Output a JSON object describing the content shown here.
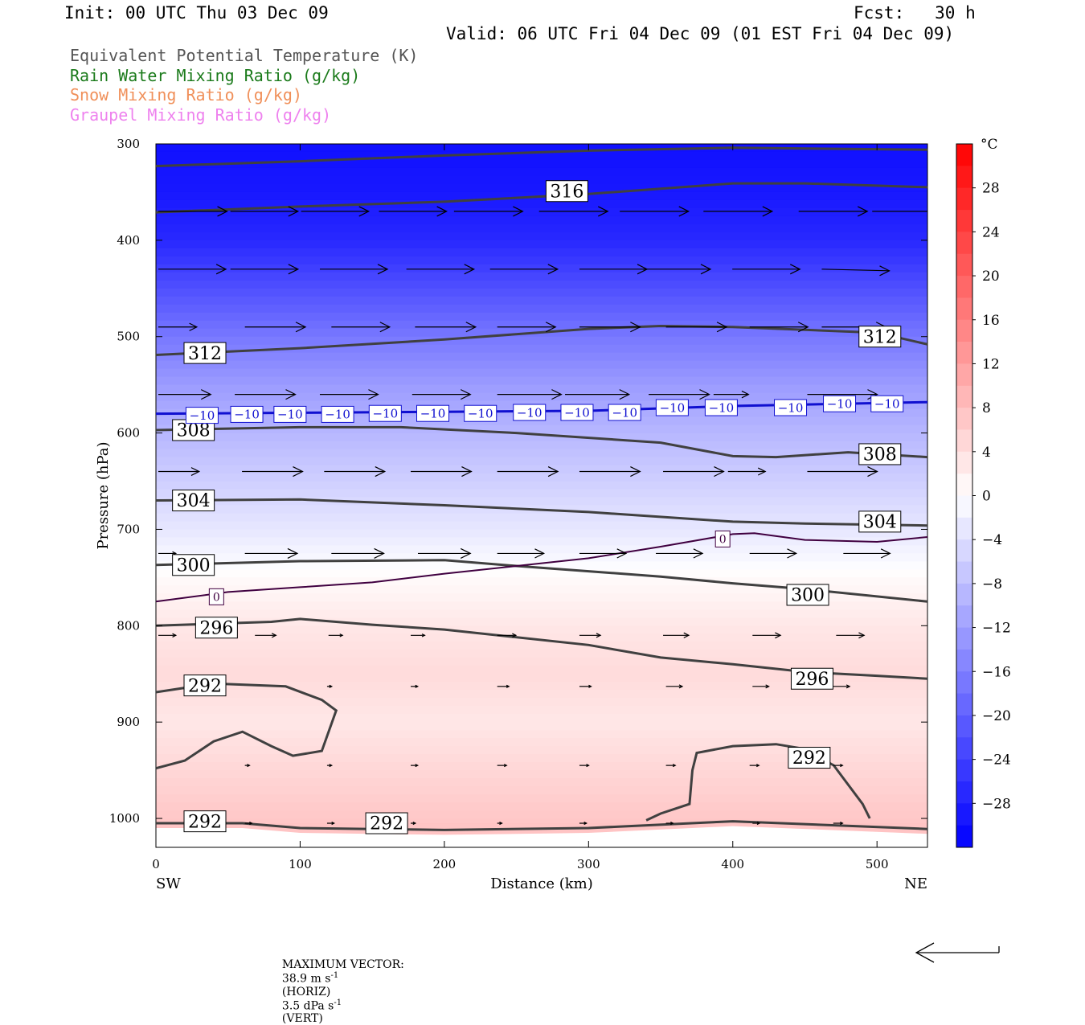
{
  "header": {
    "init": "Init: 00 UTC Thu 03 Dec 09",
    "fcst": "Fcst:   30 h",
    "valid": "Valid: 06 UTC Fri 04 Dec 09 (01 EST Fri 04 Dec 09)"
  },
  "legend": [
    {
      "label": "Equivalent Potential Temperature (K)",
      "color": "#555555"
    },
    {
      "label": "Rain Water Mixing Ratio (g/kg)",
      "color": "#1a7a1a"
    },
    {
      "label": "Snow Mixing Ratio (g/kg)",
      "color": "#f0905a"
    },
    {
      "label": "Graupel Mixing Ratio (g/kg)",
      "color": "#ee82ee"
    }
  ],
  "footer": {
    "max_vector_label": "MAXIMUM VECTOR:",
    "horiz": "38.9 m s",
    "horiz_unit": "(HORIZ)",
    "vert": "3.5 dPa s",
    "vert_unit": "(VERT)",
    "exponent": "-1"
  },
  "chart_data": {
    "type": "heatmap",
    "xlabel": "Distance (km)",
    "ylabel": "Pressure (hPa)",
    "xlim": [
      0,
      535
    ],
    "ylim": [
      1030,
      300
    ],
    "x_ticks": [
      0,
      100,
      200,
      300,
      400,
      500
    ],
    "y_ticks": [
      300,
      400,
      500,
      600,
      700,
      800,
      900,
      1000
    ],
    "x_end_labels": {
      "left": "SW",
      "right": "NE"
    },
    "colorbar": {
      "unit": "°C",
      "range": [
        -32,
        32
      ],
      "ticks": [
        28,
        24,
        20,
        16,
        12,
        8,
        4,
        0,
        -4,
        -8,
        -12,
        -16,
        -20,
        -24,
        -28
      ],
      "cold_color": "#0000ff",
      "warm_color": "#ff0000"
    },
    "temperature_field": {
      "pressure": [
        300,
        350,
        400,
        450,
        500,
        550,
        600,
        650,
        700,
        750,
        800,
        850,
        900,
        950,
        1000,
        1030
      ],
      "temp_c": [
        -30,
        -29,
        -27,
        -22,
        -17,
        -12.5,
        -9,
        -6,
        -3,
        0.5,
        3,
        4.5,
        3,
        5,
        7,
        8
      ]
    },
    "theta_e_contours": [
      {
        "label": "316",
        "points": [
          [
            0,
            323
          ],
          [
            100,
            318
          ],
          [
            200,
            312
          ],
          [
            300,
            307
          ],
          [
            400,
            304
          ],
          [
            535,
            306
          ]
        ]
      },
      {
        "label": "316",
        "points": [
          [
            0,
            371
          ],
          [
            100,
            365
          ],
          [
            200,
            360
          ],
          [
            300,
            352
          ],
          [
            400,
            341
          ],
          [
            450,
            341
          ],
          [
            535,
            345
          ]
        ]
      },
      {
        "label": "312",
        "points": [
          [
            0,
            519
          ],
          [
            100,
            512
          ],
          [
            200,
            503
          ],
          [
            300,
            492
          ],
          [
            350,
            489
          ],
          [
            400,
            490
          ],
          [
            450,
            493
          ],
          [
            500,
            496
          ],
          [
            535,
            508
          ]
        ]
      },
      {
        "label": "308",
        "points": [
          [
            0,
            597
          ],
          [
            100,
            594
          ],
          [
            170,
            594
          ],
          [
            250,
            600
          ],
          [
            350,
            610
          ],
          [
            400,
            624
          ],
          [
            430,
            625
          ],
          [
            480,
            620
          ],
          [
            535,
            625
          ]
        ]
      },
      {
        "label": "304",
        "points": [
          [
            0,
            670
          ],
          [
            100,
            669
          ],
          [
            200,
            675
          ],
          [
            300,
            682
          ],
          [
            400,
            692
          ],
          [
            450,
            694
          ],
          [
            535,
            696
          ]
        ]
      },
      {
        "label": "300",
        "points": [
          [
            0,
            737
          ],
          [
            100,
            733
          ],
          [
            200,
            732
          ],
          [
            250,
            738
          ],
          [
            350,
            749
          ],
          [
            400,
            756
          ],
          [
            450,
            762
          ],
          [
            535,
            775
          ]
        ]
      },
      {
        "label": "296",
        "points": [
          [
            0,
            800
          ],
          [
            80,
            796
          ],
          [
            100,
            793
          ],
          [
            150,
            799
          ],
          [
            200,
            804
          ],
          [
            300,
            820
          ],
          [
            350,
            833
          ],
          [
            400,
            840
          ],
          [
            450,
            848
          ],
          [
            500,
            852
          ],
          [
            535,
            855
          ]
        ]
      },
      {
        "label": "292",
        "points": [
          [
            0,
            869
          ],
          [
            40,
            860
          ],
          [
            90,
            863
          ],
          [
            115,
            877
          ],
          [
            125,
            888
          ],
          [
            115,
            930
          ],
          [
            95,
            935
          ],
          [
            80,
            925
          ],
          [
            60,
            910
          ],
          [
            40,
            920
          ],
          [
            20,
            940
          ],
          [
            0,
            948
          ]
        ]
      },
      {
        "label": "292",
        "points": [
          [
            340,
            1002
          ],
          [
            350,
            995
          ],
          [
            370,
            985
          ],
          [
            372,
            950
          ],
          [
            375,
            932
          ],
          [
            400,
            925
          ],
          [
            430,
            923
          ],
          [
            450,
            928
          ],
          [
            470,
            945
          ],
          [
            490,
            985
          ],
          [
            495,
            1000
          ]
        ]
      },
      {
        "label": "292",
        "points": [
          [
            0,
            1005
          ],
          [
            60,
            1005
          ],
          [
            100,
            1010
          ],
          [
            200,
            1012
          ],
          [
            300,
            1010
          ],
          [
            400,
            1003
          ],
          [
            535,
            1011
          ]
        ]
      }
    ],
    "theta_e_label_positions": [
      {
        "text": "316",
        "x": 285,
        "p": 349
      },
      {
        "text": "312",
        "x": 34,
        "p": 517
      },
      {
        "text": "312",
        "x": 502,
        "p": 500
      },
      {
        "text": "308",
        "x": 26,
        "p": 597
      },
      {
        "text": "308",
        "x": 502,
        "p": 622
      },
      {
        "text": "304",
        "x": 26,
        "p": 670
      },
      {
        "text": "304",
        "x": 502,
        "p": 692
      },
      {
        "text": "300",
        "x": 26,
        "p": 737
      },
      {
        "text": "300",
        "x": 452,
        "p": 768
      },
      {
        "text": "296",
        "x": 42,
        "p": 802
      },
      {
        "text": "296",
        "x": 455,
        "p": 855
      },
      {
        "text": "292",
        "x": 34,
        "p": 862
      },
      {
        "text": "292",
        "x": 453,
        "p": 937
      },
      {
        "text": "292",
        "x": 34,
        "p": 1003
      },
      {
        "text": "292",
        "x": 160,
        "p": 1005
      }
    ],
    "isotherm_minus10": {
      "label": "−10",
      "color": "#1010d0",
      "points": [
        [
          0,
          580
        ],
        [
          100,
          579
        ],
        [
          200,
          578
        ],
        [
          300,
          577
        ],
        [
          400,
          572
        ],
        [
          535,
          568
        ]
      ],
      "label_x": [
        32,
        63,
        93,
        126,
        159,
        192,
        225,
        259,
        292,
        325,
        358,
        392,
        440,
        474,
        507
      ]
    },
    "isotherm_zero": {
      "label": "0",
      "color": "#400040",
      "points": [
        [
          0,
          775
        ],
        [
          50,
          765
        ],
        [
          100,
          760
        ],
        [
          150,
          755
        ],
        [
          200,
          746
        ],
        [
          250,
          738
        ],
        [
          300,
          730
        ],
        [
          350,
          718
        ],
        [
          400,
          705
        ],
        [
          415,
          704
        ],
        [
          450,
          711
        ],
        [
          500,
          713
        ],
        [
          535,
          708
        ]
      ],
      "label_positions": [
        [
          42,
          770
        ],
        [
          393,
          710
        ]
      ]
    },
    "wind_vectors": [
      {
        "p": 370,
        "x": [
          0,
          50,
          99,
          153,
          205,
          264,
          320,
          378,
          444,
          495
        ],
        "u": [
          59,
          58,
          58,
          58,
          59,
          59,
          59,
          59,
          59,
          57
        ],
        "w": [
          0,
          0,
          0,
          0,
          0,
          0,
          0,
          0,
          0,
          0
        ]
      },
      {
        "p": 430,
        "x": [
          0,
          50,
          112,
          172,
          230,
          292,
          336,
          398,
          460
        ],
        "u": [
          58,
          58,
          58,
          58,
          58,
          58,
          58,
          58,
          58
        ],
        "w": [
          0,
          0,
          0,
          0,
          0,
          0,
          0,
          0,
          -1
        ]
      },
      {
        "p": 490,
        "x": [
          0,
          60,
          120,
          178,
          235,
          292,
          352,
          410,
          460
        ],
        "u": [
          33,
          52,
          50,
          52,
          50,
          52,
          52,
          50,
          55
        ],
        "w": [
          0,
          0,
          0,
          0,
          0,
          0,
          0,
          0,
          0
        ]
      },
      {
        "p": 560,
        "x": [
          0,
          53,
          112,
          176,
          235,
          282,
          340,
          385,
          450
        ],
        "u": [
          45,
          52,
          50,
          50,
          55,
          55,
          52,
          30,
          60
        ],
        "w": [
          0,
          0,
          0,
          0,
          0,
          0,
          0,
          0,
          0
        ]
      },
      {
        "p": 640,
        "x": [
          0,
          58,
          115,
          175,
          235,
          292,
          350,
          395,
          450
        ],
        "u": [
          35,
          52,
          52,
          52,
          52,
          52,
          52,
          32,
          60
        ],
        "w": [
          0,
          0,
          0,
          0,
          0,
          0,
          0,
          0,
          0
        ]
      },
      {
        "p": 725,
        "x": [
          0,
          60,
          120,
          180,
          235,
          292,
          345,
          410,
          475
        ],
        "u": [
          15,
          45,
          45,
          45,
          40,
          40,
          40,
          40,
          40
        ],
        "w": [
          0,
          0,
          0,
          0,
          0,
          0,
          0,
          0,
          0
        ]
      },
      {
        "p": 810,
        "x": [
          0,
          67,
          118,
          175,
          235,
          292,
          350,
          412,
          470
        ],
        "u": [
          15,
          18,
          12,
          12,
          16,
          18,
          22,
          24,
          24
        ],
        "w": [
          0,
          0,
          0,
          0,
          0,
          0,
          0,
          0,
          0
        ]
      },
      {
        "p": 863,
        "x": [
          117,
          175,
          235,
          292,
          352,
          412,
          468
        ],
        "u": [
          4,
          6,
          10,
          10,
          14,
          14,
          14
        ],
        "w": [
          0,
          0,
          0,
          0,
          0,
          0,
          0
        ]
      },
      {
        "p": 945,
        "x": [
          60,
          117,
          175,
          235,
          292,
          352,
          410,
          468
        ],
        "u": [
          4,
          4,
          6,
          8,
          8,
          8,
          8,
          8
        ],
        "w": [
          0,
          0,
          0,
          0,
          0,
          0,
          0,
          0
        ]
      },
      {
        "p": 1005,
        "x": [
          60,
          117,
          175,
          235,
          292,
          352,
          412,
          468
        ],
        "u": [
          6,
          6,
          4,
          4,
          6,
          6,
          6,
          8
        ],
        "w": [
          0,
          0,
          0,
          0,
          0,
          0,
          0,
          0
        ]
      }
    ]
  }
}
